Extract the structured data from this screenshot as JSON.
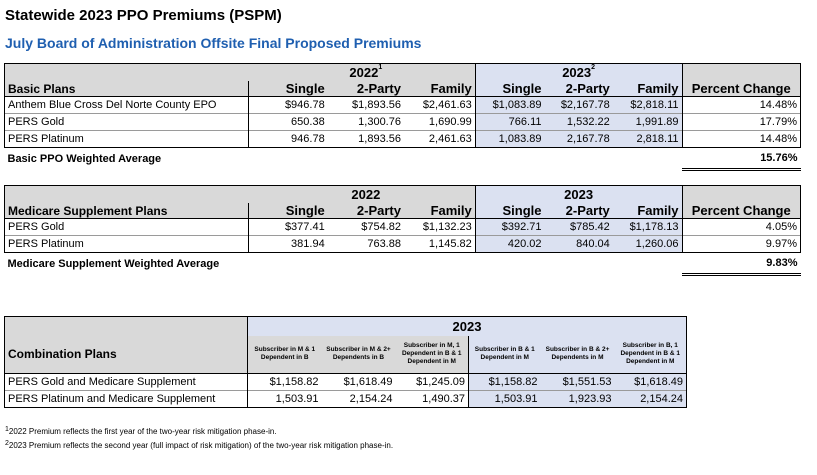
{
  "title": "Statewide 2023 PPO Premiums (PSPM)",
  "subtitle": "July Board of Administration Offsite Final Proposed Premiums",
  "basic": {
    "year1": "2022",
    "year1_sup": "1",
    "year2": "2023",
    "year2_sup": "2",
    "header_label": "Basic Plans",
    "cols": [
      "Single",
      "2-Party",
      "Family",
      "Single",
      "2-Party",
      "Family",
      "Percent Change"
    ],
    "rows": [
      {
        "name": "Anthem Blue Cross Del Norte County EPO",
        "v": [
          "$946.78",
          "$1,893.56",
          "$2,461.63",
          "$1,083.89",
          "$2,167.78",
          "$2,818.11",
          "14.48%"
        ]
      },
      {
        "name": "PERS Gold",
        "v": [
          "650.38",
          "1,300.76",
          "1,690.99",
          "766.11",
          "1,532.22",
          "1,991.89",
          "17.79%"
        ]
      },
      {
        "name": "PERS Platinum",
        "v": [
          "946.78",
          "1,893.56",
          "2,461.63",
          "1,083.89",
          "2,167.78",
          "2,818.11",
          "14.48%"
        ]
      }
    ],
    "wavg_label": "Basic PPO Weighted Average",
    "wavg_value": "15.76%"
  },
  "medicare": {
    "year1": "2022",
    "year2": "2023",
    "header_label": "Medicare Supplement Plans",
    "cols": [
      "Single",
      "2-Party",
      "Family",
      "Single",
      "2-Party",
      "Family",
      "Percent Change"
    ],
    "rows": [
      {
        "name": "PERS Gold",
        "v": [
          "$377.41",
          "$754.82",
          "$1,132.23",
          "$392.71",
          "$785.42",
          "$1,178.13",
          "4.05%"
        ]
      },
      {
        "name": "PERS Platinum",
        "v": [
          "381.94",
          "763.88",
          "1,145.82",
          "420.02",
          "840.04",
          "1,260.06",
          "9.97%"
        ]
      }
    ],
    "wavg_label": "Medicare Supplement Weighted Average",
    "wavg_value": "9.83%"
  },
  "combo": {
    "year": "2023",
    "header_label": "Combination Plans",
    "cols": [
      "Subscriber in M & 1 Dependent in B",
      "Subscriber in M & 2+ Dependents in B",
      "Subscriber in M, 1 Dependent in B & 1 Dependent in M",
      "Subscriber in B & 1 Dependent in M",
      "Subscriber in B & 2+ Dependents in M",
      "Subscriber in B, 1 Dependent in B & 1 Dependent in M"
    ],
    "rows": [
      {
        "name": "PERS Gold and Medicare Supplement",
        "v": [
          "$1,158.82",
          "$1,618.49",
          "$1,245.09",
          "$1,158.82",
          "$1,551.53",
          "$1,618.49"
        ]
      },
      {
        "name": "PERS Platinum and Medicare Supplement",
        "v": [
          "1,503.91",
          "2,154.24",
          "1,490.37",
          "1,503.91",
          "1,923.93",
          "2,154.24"
        ]
      }
    ]
  },
  "footnotes": {
    "fn1_mark": "1",
    "fn1": "2022 Premium reflects the first year of the two-year risk mitigation phase-in.",
    "fn2_mark": "2",
    "fn2": "2023 Premium reflects the second year (full impact of risk mitigation) of the two-year risk mitigation phase-in."
  }
}
